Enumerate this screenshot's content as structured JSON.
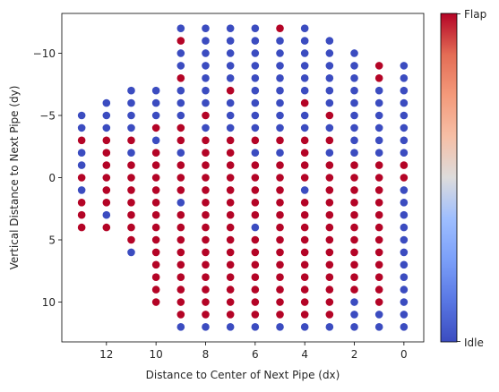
{
  "chart_data": {
    "type": "scatter",
    "xlabel": "Distance to Center of Next Pipe (dx)",
    "ylabel": "Vertical Distance to Next Pipe (dy)",
    "xlim": [
      13.8,
      -0.8
    ],
    "ylim": [
      13.2,
      -13.2
    ],
    "x_inverted": true,
    "y_inverted": true,
    "x_ticks": [
      12,
      10,
      8,
      6,
      4,
      2,
      0
    ],
    "y_ticks": [
      -10,
      -5,
      0,
      5,
      10
    ],
    "x_tick_labels": [
      "12",
      "10",
      "8",
      "6",
      "4",
      "2",
      "0"
    ],
    "y_tick_labels": [
      "−10",
      "−5",
      "0",
      "5",
      "10"
    ],
    "colormap": "coolwarm",
    "colors": {
      "idle": "#3b4cc0",
      "flap": "#b40426"
    },
    "colorbar": {
      "top_label": "Flap",
      "bottom_label": "Idle"
    },
    "value_legend": {
      "0": "Idle",
      "1": "Flap"
    },
    "columns": [
      {
        "dx": 13,
        "dy_from": -5,
        "dy_to": 4,
        "flap_dy": [
          -3,
          0,
          2,
          3,
          4
        ]
      },
      {
        "dx": 12,
        "dy_from": -6,
        "dy_to": 4,
        "flap_dy": [
          -3,
          -2,
          -1,
          0,
          1,
          2,
          4
        ]
      },
      {
        "dx": 11,
        "dy_from": -7,
        "dy_to": 6,
        "flap_dy": [
          -3,
          -1,
          0,
          1,
          2,
          3,
          4,
          5
        ]
      },
      {
        "dx": 10,
        "dy_from": -7,
        "dy_to": 10,
        "flap_dy": [
          -4,
          -2,
          -1,
          0,
          1,
          2,
          3,
          4,
          5,
          6,
          7,
          8,
          9,
          10
        ]
      },
      {
        "dx": 9,
        "dy_from": -12,
        "dy_to": 12,
        "flap_dy": [
          -11,
          -8,
          -4,
          -3,
          -1,
          0,
          1,
          3,
          4,
          5,
          6,
          7,
          8,
          9,
          10,
          11
        ]
      },
      {
        "dx": 8,
        "dy_from": -12,
        "dy_to": 12,
        "flap_dy": [
          -5,
          -3,
          -2,
          -1,
          0,
          1,
          2,
          3,
          4,
          5,
          6,
          7,
          8,
          9,
          10,
          11
        ]
      },
      {
        "dx": 7,
        "dy_from": -12,
        "dy_to": 12,
        "flap_dy": [
          -7,
          -3,
          -2,
          -1,
          0,
          1,
          2,
          3,
          4,
          5,
          6,
          7,
          8,
          9,
          10,
          11
        ]
      },
      {
        "dx": 6,
        "dy_from": -12,
        "dy_to": 12,
        "flap_dy": [
          -3,
          -1,
          0,
          1,
          2,
          3,
          5,
          6,
          7,
          8,
          9,
          10,
          11
        ]
      },
      {
        "dx": 5,
        "dy_from": -12,
        "dy_to": 12,
        "flap_dy": [
          -12,
          -3,
          -1,
          0,
          1,
          2,
          3,
          4,
          5,
          6,
          7,
          8,
          9,
          10,
          11
        ]
      },
      {
        "dx": 4,
        "dy_from": -12,
        "dy_to": 12,
        "flap_dy": [
          -6,
          -3,
          -2,
          -1,
          0,
          2,
          3,
          4,
          5,
          6,
          7,
          8,
          9,
          10,
          11
        ]
      },
      {
        "dx": 3,
        "dy_from": -11,
        "dy_to": 12,
        "flap_dy": [
          -5,
          -3,
          -1,
          0,
          1,
          2,
          3,
          4,
          5,
          6,
          7,
          8,
          9,
          10,
          11
        ]
      },
      {
        "dx": 2,
        "dy_from": -10,
        "dy_to": 12,
        "flap_dy": [
          -1,
          0,
          1,
          2,
          3,
          4,
          5,
          6,
          7,
          8,
          9
        ]
      },
      {
        "dx": 1,
        "dy_from": -9,
        "dy_to": 12,
        "flap_dy": [
          -9,
          -8,
          -1,
          0,
          1,
          2,
          3,
          4,
          5,
          6,
          7,
          8,
          9,
          10
        ]
      },
      {
        "dx": 0,
        "dy_from": -9,
        "dy_to": 12,
        "flap_dy": [
          -1,
          0
        ]
      }
    ]
  }
}
